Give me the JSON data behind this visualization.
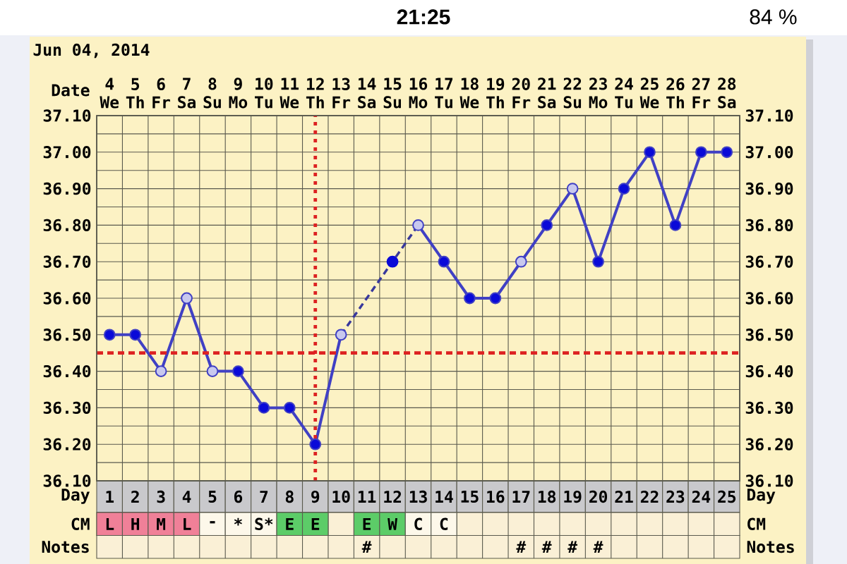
{
  "chart_data": [
    {
      "type": "line",
      "title": "Jun 04, 2014",
      "xlabel": "Day",
      "x2label": "Date",
      "x": [
        1,
        2,
        3,
        4,
        5,
        6,
        7,
        8,
        9,
        10,
        11,
        12,
        13,
        14,
        15,
        16,
        17,
        18,
        19,
        20,
        21,
        22,
        23,
        24,
        25
      ],
      "xlim": [
        0.5,
        25.5
      ],
      "xticks": [
        1,
        2,
        3,
        4,
        5,
        6,
        7,
        8,
        9,
        10,
        11,
        12,
        13,
        14,
        15,
        16,
        17,
        18,
        19,
        20,
        21,
        22,
        23,
        24,
        25,
        {
          "value": 1.5,
          "label": null
        },
        {
          "value": 2.5,
          "label": null
        },
        {
          "value": 3.5,
          "label": null
        },
        {
          "value": 4.5,
          "label": null
        },
        {
          "value": 5.5,
          "label": null
        },
        {
          "value": 6.5,
          "label": null
        },
        {
          "value": 7.5,
          "label": null
        },
        {
          "value": 8.5,
          "label": null
        },
        {
          "value": 9.5,
          "label": null
        },
        {
          "value": 10.5,
          "label": null
        },
        {
          "value": 11.5,
          "label": null
        },
        {
          "value": 12.5,
          "label": null
        },
        {
          "value": 13.5,
          "label": null
        },
        {
          "value": 14.5,
          "label": null
        },
        {
          "value": 15.5,
          "label": null
        },
        {
          "value": 16.5,
          "label": null
        },
        {
          "value": 17.5,
          "label": null
        },
        {
          "value": 18.5,
          "label": null
        },
        {
          "value": 19.5,
          "label": null
        },
        {
          "value": 20.5,
          "label": null
        },
        {
          "value": 21.5,
          "label": null
        },
        {
          "value": 22.5,
          "label": null
        },
        {
          "value": 23.5,
          "label": null
        },
        {
          "value": 24.5,
          "label": null
        }
      ],
      "x2lim": [
        3.5,
        28.5
      ],
      "x2ticks": [
        {
          "value": 4,
          "label": "4 We"
        },
        {
          "value": 5,
          "label": "5 Th"
        },
        {
          "value": 6,
          "label": "6 Fr"
        },
        {
          "value": 7,
          "label": "7 Sa"
        },
        {
          "value": 8,
          "label": "8 Su"
        },
        {
          "value": 9,
          "label": "9 Mo"
        },
        {
          "value": 10,
          "label": "10 Tu"
        },
        {
          "value": 11,
          "label": "11 We"
        },
        {
          "value": 12,
          "label": "12 Th"
        },
        {
          "value": 13,
          "label": "13 Fr"
        },
        {
          "value": 14,
          "label": "14 Sa"
        },
        {
          "value": 15,
          "label": "15 Su"
        },
        {
          "value": 16,
          "label": "16 Mo"
        },
        {
          "value": 17,
          "label": "17 Tu"
        },
        {
          "value": 18,
          "label": "18 We"
        },
        {
          "value": 19,
          "label": "19 Th"
        },
        {
          "value": 20,
          "label": "20 Fr"
        },
        {
          "value": 21,
          "label": "21 Sa"
        },
        {
          "value": 22,
          "label": "22 Su"
        },
        {
          "value": 23,
          "label": "23 Mo"
        },
        {
          "value": 24,
          "label": "24 Tu"
        },
        {
          "value": 25,
          "label": "25 We"
        },
        {
          "value": 26,
          "label": "26 Th"
        },
        {
          "value": 27,
          "label": "27 Fr"
        },
        {
          "value": 28,
          "label": "28 Sa"
        }
      ],
      "ylim": [
        36.1,
        37.1
      ],
      "yticks": [
        {
          "value": 36.1,
          "label": "36.10"
        },
        {
          "value": 36.15,
          "label": null
        },
        {
          "value": 36.2,
          "label": "36.20"
        },
        {
          "value": 36.25,
          "label": null
        },
        {
          "value": 36.3,
          "label": "36.30"
        },
        {
          "value": 36.35,
          "label": null
        },
        {
          "value": 36.4,
          "label": "36.40"
        },
        {
          "value": 36.5,
          "label": "36.50"
        },
        {
          "value": 36.55,
          "label": null
        },
        {
          "value": 36.6,
          "label": "36.60"
        },
        {
          "value": 36.65,
          "label": null
        },
        {
          "value": 36.7,
          "label": "36.70"
        },
        {
          "value": 36.75,
          "label": null
        },
        {
          "value": 36.8,
          "label": "36.80"
        },
        {
          "value": 36.85,
          "label": null
        },
        {
          "value": 36.9,
          "label": "36.90"
        },
        {
          "value": 36.95,
          "label": null
        },
        {
          "value": 37.0,
          "label": "37.00"
        },
        {
          "value": 37.05,
          "label": null
        },
        {
          "value": 37.1,
          "label": "37.10"
        }
      ],
      "y2lim": [
        36.1,
        37.1
      ],
      "y2ticks": [
        {
          "value": 36.1,
          "label": "36.10"
        },
        {
          "value": 36.2,
          "label": "36.20"
        },
        {
          "value": 36.3,
          "label": "36.30"
        },
        {
          "value": 36.4,
          "label": "36.40"
        },
        {
          "value": 36.5,
          "label": "36.50"
        },
        {
          "value": 36.6,
          "label": "36.60"
        },
        {
          "value": 36.7,
          "label": "36.70"
        },
        {
          "value": 36.8,
          "label": "36.80"
        },
        {
          "value": 36.9,
          "label": "36.90"
        },
        {
          "value": 37.0,
          "label": "37.00"
        },
        {
          "value": 37.1,
          "label": "37.10"
        }
      ],
      "grid": true,
      "series": [
        {
          "color": "#4040c4",
          "marker": "circle",
          "line_style": "solid",
          "values": [
            36.5,
            36.5,
            36.4,
            36.6,
            36.4,
            36.4,
            36.3,
            36.3,
            36.2,
            36.5,
            null,
            null,
            36.8,
            36.7,
            36.6,
            36.6,
            36.7,
            36.8,
            36.9,
            36.7,
            36.9,
            37.0,
            36.8,
            37.0,
            37.0
          ],
          "colors": [
            "#0a0ad8",
            "#0a0ad8",
            "#c8c8ee",
            "#c8c8ee",
            "#c8c8ee",
            "#0a0ad8",
            "#0a0ad8",
            "#0a0ad8",
            "#0a0ad8",
            "#c8c8ee",
            null,
            null,
            "#c8c8ee",
            "#0a0ad8",
            "#0a0ad8",
            "#0a0ad8",
            "#c8c8ee",
            "#0a0ad8",
            "#c8c8ee",
            "#0a0ad8",
            "#0a0ad8",
            "#0a0ad8",
            "#0a0ad8",
            "#0a0ad8",
            "#0a0ad8"
          ]
        },
        {
          "color": "#38389c",
          "marker": "none",
          "line_style": "dashed",
          "x": [
            10,
            13
          ],
          "values": [
            36.5,
            36.8
          ]
        },
        {
          "type": "scatter",
          "color": "#0a0ad8",
          "x": [
            12
          ],
          "values": [
            36.7
          ]
        }
      ],
      "ref_lines": [
        {
          "axis": "x",
          "value": 9,
          "color": "#dd2222",
          "line_style": "dotted"
        },
        {
          "axis": "y",
          "value": 36.45,
          "color": "#dd2222",
          "line_style": "dashed"
        }
      ],
      "annotations": [
        "21:25",
        "84 %"
      ]
    },
    {
      "type": "other",
      "ylabel": "CM",
      "y2label": "CM",
      "color": "#faf0d6",
      "categories": [
        "L",
        "H",
        "M",
        "L",
        "-",
        "*",
        "S*",
        "E",
        "E",
        null,
        "E",
        "W",
        "C",
        "C",
        null,
        null,
        null,
        null,
        null,
        null,
        null,
        null,
        null,
        null,
        null
      ],
      "colors": [
        "#f08098",
        "#f08098",
        "#f08098",
        "#f08098",
        "#fdf8ea",
        "#fdf8ea",
        "#fdf8ea",
        "#5ccc68",
        "#5ccc68",
        null,
        "#5ccc68",
        "#5ccc68",
        "#fdf8ea",
        "#fdf8ea",
        null,
        null,
        null,
        null,
        null,
        null,
        null,
        null,
        null,
        null,
        null
      ]
    },
    {
      "type": "other",
      "ylabel": "Notes",
      "y2label": "Notes",
      "color": "#faf0d6",
      "categories": [
        null,
        null,
        null,
        null,
        null,
        null,
        null,
        null,
        null,
        null,
        "#",
        null,
        null,
        null,
        null,
        null,
        "#",
        "#",
        "#",
        "#",
        null,
        null,
        null,
        null,
        null
      ]
    }
  ]
}
